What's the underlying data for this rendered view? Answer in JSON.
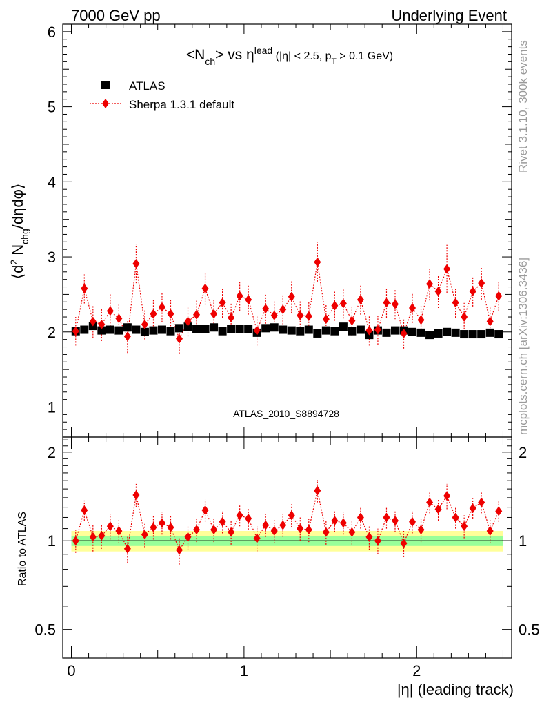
{
  "header": {
    "left": "7000 GeV pp",
    "right": "Underlying Event"
  },
  "side_labels": {
    "top": "Rivet 3.1.10,  300k events",
    "bottom": "mcplots.cern.ch [arXiv:1306.3436]"
  },
  "colors": {
    "atlas": "#000000",
    "sherpa": "#ee0000",
    "band_inner": "#99ff99",
    "band_outer": "#ffff99",
    "watermark": "#a0a0a0"
  },
  "chart_data": [
    {
      "type": "scatter",
      "panel": "main",
      "title": "<N_ch> vs η^lead (|η| < 2.5, p_T > 0.1 GeV)",
      "title_parts": {
        "a": "<N",
        "a_sub": "ch",
        "b": "> vs η",
        "b_sup": "lead",
        "c": "(|η| < 2.5, p",
        "c_sub": "T",
        "d": " > 0.1 GeV)"
      },
      "ylabel": "⟨d² N_chg/dηdφ⟩",
      "ylabel_parts": {
        "a": "⟨d",
        "a_sup": "2",
        "b": " N",
        "b_sub": "chg",
        "c": "/dηdφ⟩"
      },
      "watermark": "ATLAS_2010_S8894728",
      "xlim": [
        -0.05,
        2.55
      ],
      "ylim": [
        0.6,
        6.1
      ],
      "yticks": [
        1,
        2,
        3,
        4,
        5,
        6
      ],
      "ytick_labels": [
        "1",
        "2",
        "3",
        "4",
        "5",
        "6"
      ],
      "legend_position": "top-left",
      "x": [
        0.025,
        0.075,
        0.125,
        0.175,
        0.225,
        0.275,
        0.325,
        0.375,
        0.425,
        0.475,
        0.525,
        0.575,
        0.625,
        0.675,
        0.725,
        0.775,
        0.825,
        0.875,
        0.925,
        0.975,
        1.025,
        1.075,
        1.125,
        1.175,
        1.225,
        1.275,
        1.325,
        1.375,
        1.425,
        1.475,
        1.525,
        1.575,
        1.625,
        1.675,
        1.725,
        1.775,
        1.825,
        1.875,
        1.925,
        1.975,
        2.025,
        2.075,
        2.125,
        2.175,
        2.225,
        2.275,
        2.325,
        2.375,
        2.425,
        2.475
      ],
      "series": [
        {
          "name": "ATLAS",
          "marker": "square",
          "values": [
            2.01,
            2.03,
            2.08,
            2.02,
            2.03,
            2.02,
            2.06,
            2.03,
            2.0,
            2.02,
            2.03,
            2.01,
            2.05,
            2.07,
            2.04,
            2.04,
            2.06,
            2.01,
            2.04,
            2.04,
            2.04,
            1.99,
            2.05,
            2.06,
            2.03,
            2.02,
            2.01,
            2.03,
            1.98,
            2.02,
            2.01,
            2.07,
            2.01,
            2.03,
            1.96,
            2.02,
            1.99,
            2.02,
            2.02,
            2.0,
            1.99,
            1.96,
            1.98,
            2.0,
            1.99,
            1.97,
            1.97,
            1.97,
            1.99,
            1.97
          ]
        },
        {
          "name": "Sherpa 1.3.1 default",
          "marker": "diamond",
          "values": [
            2.01,
            2.58,
            2.14,
            2.1,
            2.28,
            2.18,
            1.94,
            2.91,
            2.1,
            2.24,
            2.33,
            2.24,
            1.91,
            2.14,
            2.23,
            2.58,
            2.24,
            2.39,
            2.19,
            2.48,
            2.43,
            2.02,
            2.31,
            2.22,
            2.3,
            2.47,
            2.22,
            2.21,
            2.93,
            2.17,
            2.35,
            2.38,
            2.15,
            2.43,
            2.02,
            2.03,
            2.39,
            2.37,
            1.98,
            2.32,
            2.16,
            2.64,
            2.54,
            2.84,
            2.39,
            2.2,
            2.54,
            2.65,
            2.14,
            2.48
          ],
          "errors": [
            0.19,
            0.2,
            0.22,
            0.22,
            0.24,
            0.2,
            0.22,
            0.26,
            0.2,
            0.2,
            0.2,
            0.2,
            0.2,
            0.2,
            0.2,
            0.22,
            0.2,
            0.2,
            0.2,
            0.2,
            0.2,
            0.2,
            0.2,
            0.2,
            0.2,
            0.22,
            0.2,
            0.2,
            0.26,
            0.2,
            0.2,
            0.2,
            0.2,
            0.2,
            0.2,
            0.2,
            0.2,
            0.2,
            0.2,
            0.2,
            0.2,
            0.22,
            0.22,
            0.32,
            0.2,
            0.2,
            0.2,
            0.22,
            0.2,
            0.2
          ]
        }
      ]
    },
    {
      "type": "scatter",
      "panel": "ratio",
      "ylabel": "Ratio to ATLAS",
      "xlabel": "|η| (leading track)",
      "xlim": [
        -0.05,
        2.55
      ],
      "ylim": [
        0.4,
        2.25
      ],
      "yscale": "log",
      "yticks": [
        0.5,
        1,
        2
      ],
      "ytick_labels": [
        "0.5",
        "1",
        "2"
      ],
      "xticks": [
        0,
        1,
        2
      ],
      "xtick_labels": [
        "0",
        "1",
        "2"
      ],
      "reference_line": 1,
      "band_inner_halfwidth": 0.04,
      "band_outer_halfwidth": 0.08,
      "series": [
        {
          "name": "Sherpa 1.3.1 default",
          "values": [
            1.0,
            1.27,
            1.03,
            1.04,
            1.12,
            1.08,
            0.94,
            1.43,
            1.05,
            1.11,
            1.15,
            1.11,
            0.93,
            1.03,
            1.09,
            1.27,
            1.09,
            1.16,
            1.07,
            1.22,
            1.19,
            1.02,
            1.13,
            1.08,
            1.13,
            1.22,
            1.1,
            1.09,
            1.48,
            1.07,
            1.17,
            1.15,
            1.07,
            1.2,
            1.03,
            1.0,
            1.2,
            1.17,
            0.98,
            1.16,
            1.09,
            1.35,
            1.28,
            1.42,
            1.2,
            1.12,
            1.29,
            1.35,
            1.08,
            1.26
          ],
          "errors": [
            0.09,
            0.1,
            0.11,
            0.1,
            0.11,
            0.1,
            0.1,
            0.13,
            0.1,
            0.1,
            0.1,
            0.1,
            0.1,
            0.1,
            0.1,
            0.11,
            0.1,
            0.1,
            0.1,
            0.1,
            0.1,
            0.1,
            0.1,
            0.1,
            0.1,
            0.11,
            0.1,
            0.1,
            0.13,
            0.1,
            0.1,
            0.1,
            0.1,
            0.1,
            0.1,
            0.1,
            0.1,
            0.1,
            0.1,
            0.1,
            0.1,
            0.11,
            0.11,
            0.14,
            0.1,
            0.1,
            0.1,
            0.11,
            0.1,
            0.1
          ]
        }
      ]
    }
  ]
}
